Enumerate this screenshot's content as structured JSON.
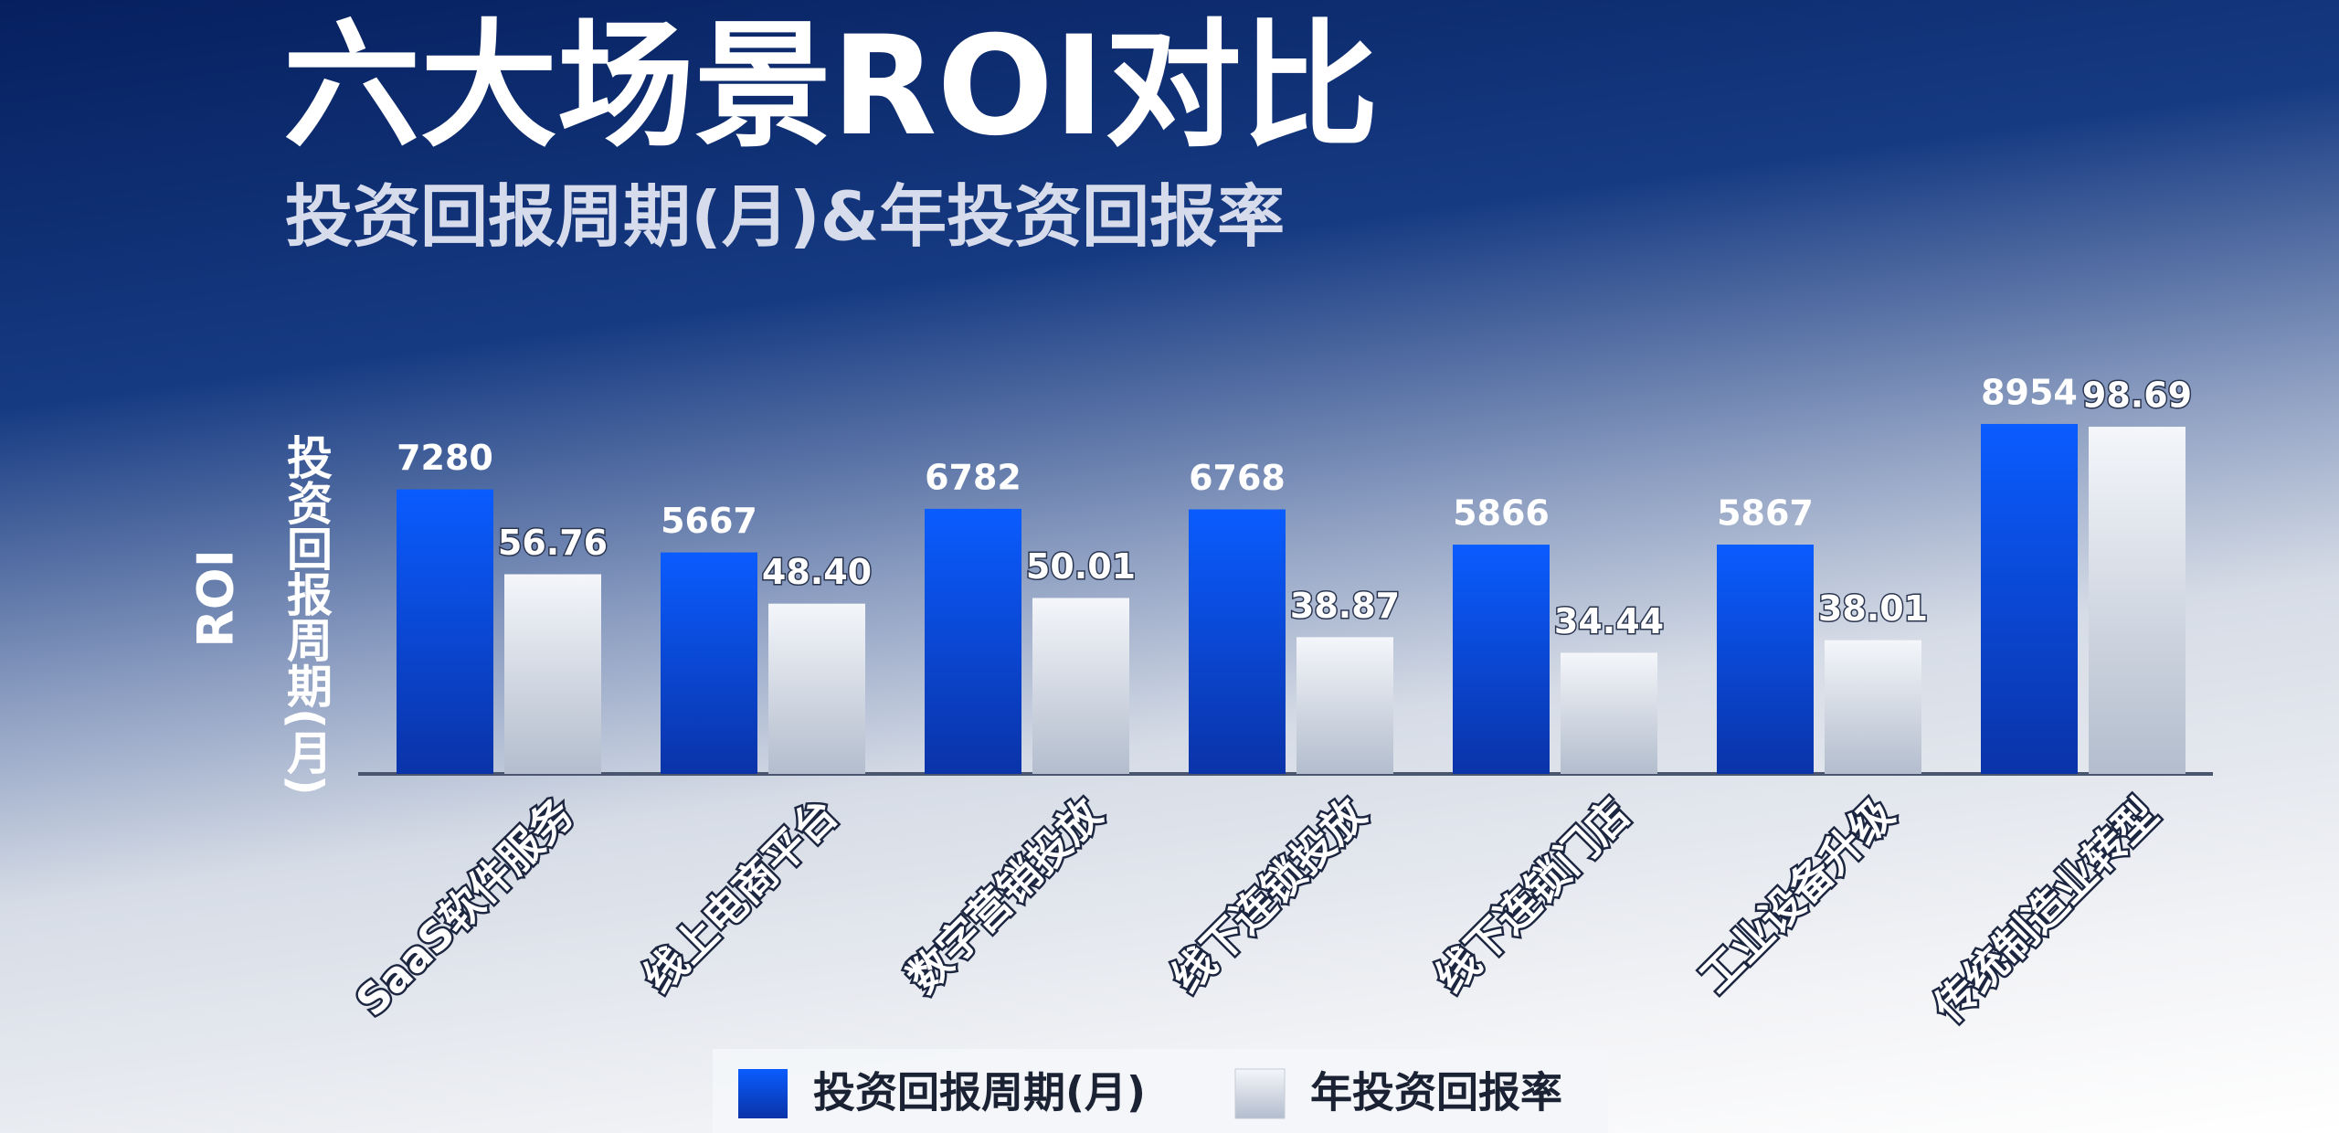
{
  "chart_data": {
    "type": "bar",
    "title": "六大场景ROI对比",
    "subtitle": "投资回报周期(月)&年投资回报率",
    "ylabels": [
      "ROI",
      "投资回报周期(月)"
    ],
    "categories": [
      "SaaS软件服务",
      "线上电商平台",
      "数字营销投放",
      "线下连锁投放",
      "线下连锁门店",
      "工业设备升级",
      "传统制造业转型"
    ],
    "series": [
      {
        "name": "投资回报周期(月)",
        "color": "#0d4ff0",
        "values": [
          7280,
          5667,
          6782,
          6768,
          5866,
          5867,
          8954
        ]
      },
      {
        "name": "年投资回报率",
        "color": "#dfe4ec",
        "axis": "y2",
        "values": [
          56.76,
          48.4,
          50.01,
          38.87,
          34.44,
          38.01,
          98.69
        ],
        "value_labels": [
          "56.76",
          "48.40",
          "50.01",
          "38.87",
          "34.44",
          "38.01",
          "98.69"
        ]
      }
    ],
    "ylim": [
      0,
      9000
    ],
    "y2lim": [
      0,
      100
    ],
    "grid": false
  }
}
